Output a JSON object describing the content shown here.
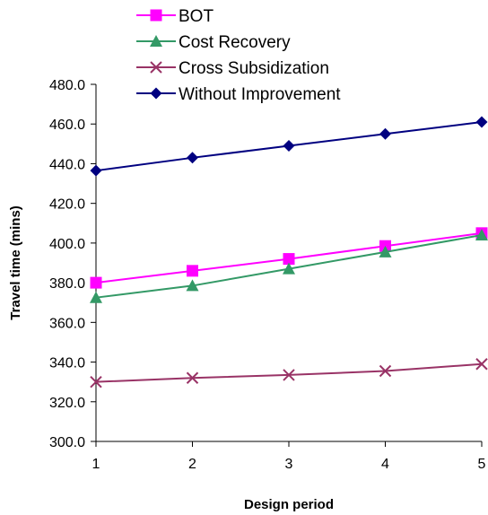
{
  "chart_data": {
    "type": "line",
    "title": "",
    "xlabel": "Design period",
    "ylabel": "Travel time (mins)",
    "x": [
      1,
      2,
      3,
      4,
      5
    ],
    "x_tick_labels": [
      "1",
      "2",
      "3",
      "4",
      "5"
    ],
    "y_tick_labels": [
      "300.0",
      "320.0",
      "340.0",
      "360.0",
      "380.0",
      "400.0",
      "420.0",
      "440.0",
      "460.0",
      "480.0"
    ],
    "ylim": [
      300,
      480
    ],
    "grid": false,
    "legend_position": "top-right",
    "series": [
      {
        "name": "BOT",
        "color": "#ff00ff",
        "marker": "square",
        "values": [
          380.0,
          386.0,
          392.0,
          398.5,
          405.0
        ]
      },
      {
        "name": "Cost Recovery",
        "color": "#339966",
        "marker": "triangle",
        "values": [
          372.5,
          378.5,
          387.0,
          395.5,
          404.0
        ]
      },
      {
        "name": "Cross Subsidization",
        "color": "#993366",
        "marker": "x",
        "values": [
          330.0,
          332.0,
          333.5,
          335.5,
          339.0
        ]
      },
      {
        "name": "Without Improvement",
        "color": "#000080",
        "marker": "diamond",
        "values": [
          436.5,
          443.0,
          449.0,
          455.0,
          461.0
        ]
      }
    ]
  }
}
